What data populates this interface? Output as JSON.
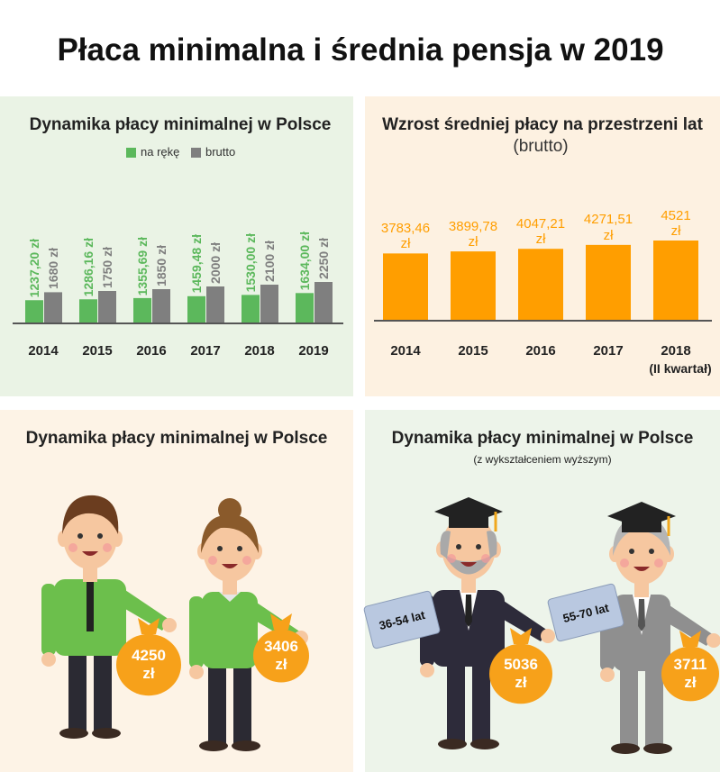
{
  "title": "Płaca minimalna i średnia pensja w 2019",
  "chart_data": [
    {
      "type": "bar",
      "title": "Dynamika płacy minimalnej w Polsce",
      "categories": [
        "2014",
        "2015",
        "2016",
        "2017",
        "2018",
        "2019"
      ],
      "series": [
        {
          "name": "na rękę",
          "color": "#5cb85c",
          "values": [
            1237.2,
            1286.16,
            1355.69,
            1459.48,
            1530.0,
            1634.0
          ],
          "value_labels": [
            "1237,20 zł",
            "1286,16 zł",
            "1355,69 zł",
            "1459,48 zł",
            "1530,00 zł",
            "1634,00 zł"
          ]
        },
        {
          "name": "brutto",
          "color": "#7f7f7f",
          "values": [
            1680,
            1750,
            1850,
            2000,
            2100,
            2250
          ],
          "value_labels": [
            "1680 zł",
            "1750 zł",
            "1850 zł",
            "2000 zł",
            "2100 zł",
            "2250 zł"
          ]
        }
      ]
    },
    {
      "type": "bar",
      "title": "Wzrost średniej płacy na przestrzeni lat",
      "subtitle": "(brutto)",
      "categories": [
        "2014",
        "2015",
        "2016",
        "2017",
        "2018"
      ],
      "note": "(II kwartał)",
      "values": [
        3783.46,
        3899.78,
        4047.21,
        4271.51,
        4521
      ],
      "value_labels": [
        "3783,46 zł",
        "3899,78 zł",
        "4047,21 zł",
        "4271,51 zł",
        "4521 zł"
      ],
      "color": "#ff9e00"
    }
  ],
  "panels": [
    {
      "title": "Dynamika płacy minimalnej w Polsce",
      "people": [
        {
          "amount": "4250 zł"
        },
        {
          "amount": "3406 zł"
        }
      ]
    },
    {
      "title": "Dynamika płacy minimalnej w Polsce",
      "subtitle": "(z wykształceniem wyższym)",
      "people": [
        {
          "age": "36-54 lat",
          "amount": "5036 zł"
        },
        {
          "age": "55-70 lat",
          "amount": "3711 zł"
        }
      ]
    }
  ]
}
